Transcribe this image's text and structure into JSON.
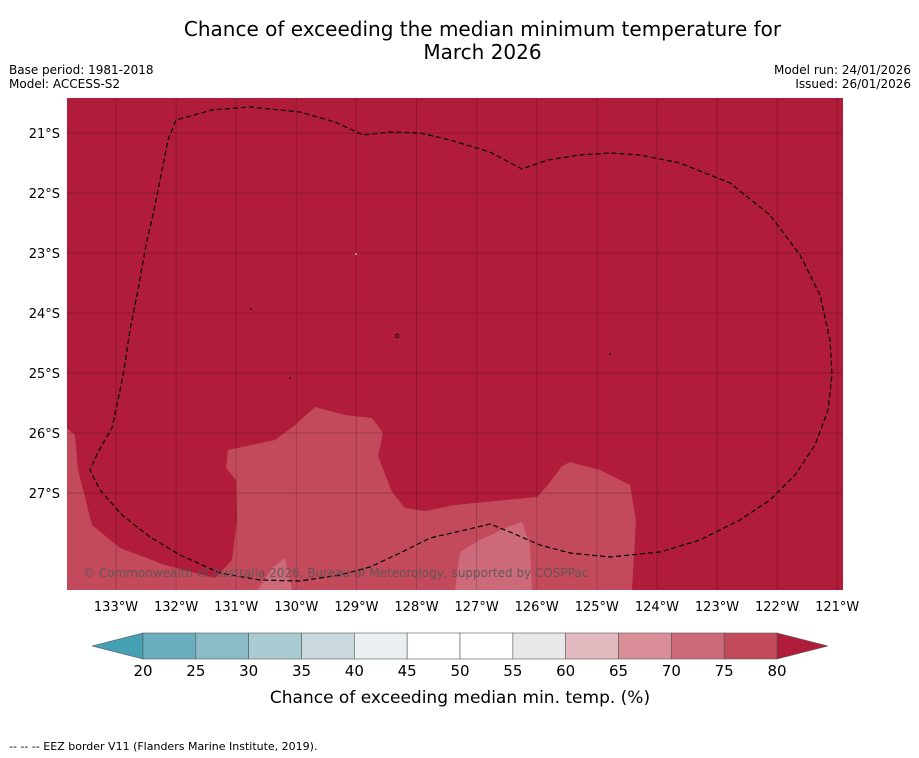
{
  "title": {
    "line1": "Chance of exceeding the median minimum temperature for",
    "line2": "March 2026"
  },
  "meta": {
    "base_period": "Base period: 1981-2018",
    "model": "Model: ACCESS-S2",
    "model_run": "Model run: 24/01/2026",
    "issued": "Issued: 26/01/2026"
  },
  "map": {
    "lon_labels": [
      "133°W",
      "132°W",
      "131°W",
      "130°W",
      "129°W",
      "128°W",
      "127°W",
      "126°W",
      "125°W",
      "124°W",
      "123°W",
      "122°W",
      "121°W"
    ],
    "lat_labels": [
      "21°S",
      "22°S",
      "23°S",
      "24°S",
      "25°S",
      "26°S",
      "27°S"
    ],
    "credit": "© Commonwealth of Australia 2026, Bureau of Meteorology, supported by COSPPac",
    "colors": {
      "above_80": "#b01c3a",
      "band_75_80": "#c24a5b",
      "band_70_75": "#cc6a79"
    }
  },
  "colorbar": {
    "ticks": [
      "20",
      "25",
      "30",
      "35",
      "40",
      "45",
      "50",
      "55",
      "60",
      "65",
      "70",
      "75",
      "80"
    ],
    "colors": [
      "#6aaebe",
      "#8bbcc7",
      "#a9cbd1",
      "#cad9dd",
      "#eaf0f2",
      "#ffffff",
      "#ffffff",
      "#e8e8e8",
      "#e2b9bf",
      "#d98e98",
      "#cc6a79",
      "#c24a5b"
    ],
    "under_color": "#45a0b3",
    "over_color": "#b01c3a",
    "label": "Chance of exceeding median min. temp. (%)"
  },
  "footnote": "--  --  -- EEZ border V11 (Flanders Marine Institute, 2019)."
}
